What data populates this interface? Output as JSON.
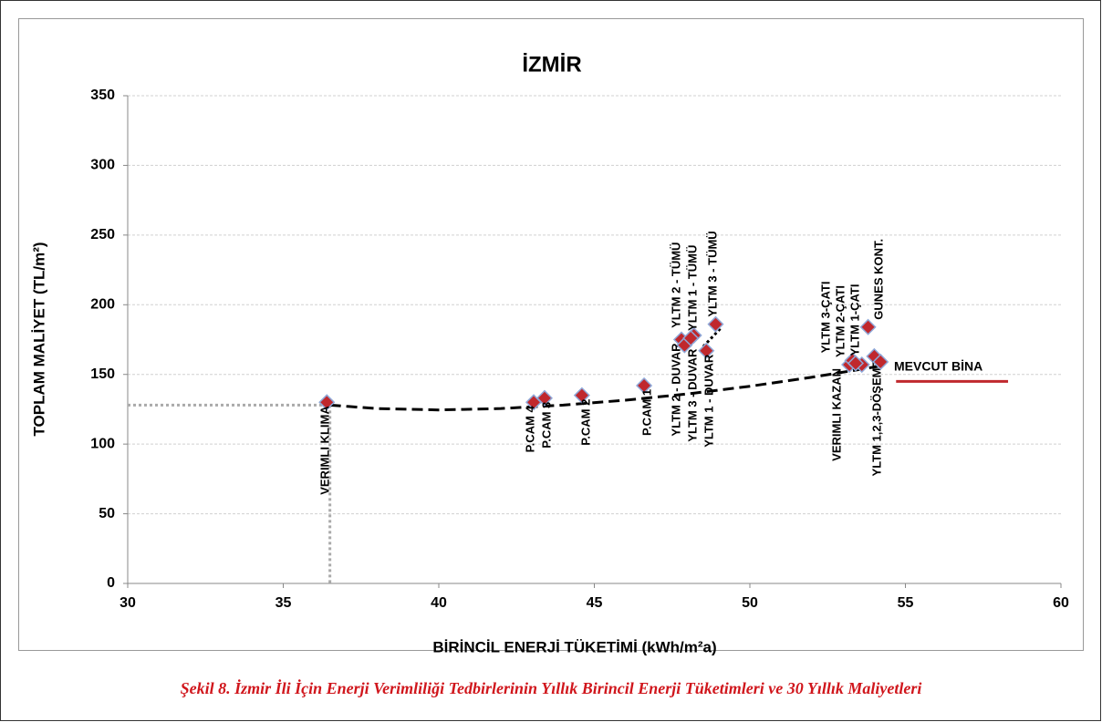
{
  "chart_data": {
    "type": "scatter",
    "title": "İZMİR",
    "x_label": "BİRİNCİL ENERJİ TÜKETİMİ (kWh/m²a)",
    "y_label": "TOPLAM MALİYET (TL/m²)",
    "caption": "Şekil 8. İzmir İli İçin Enerji Verimliliği Tedbirlerinin Yıllık Birincil Enerji Tüketimleri ve 30 Yıllık Maliyetleri",
    "xlim": [
      30,
      60
    ],
    "xticks": [
      30,
      35,
      40,
      45,
      50,
      55,
      60
    ],
    "ylim": [
      0,
      350
    ],
    "yticks": [
      0,
      50,
      100,
      150,
      200,
      250,
      300,
      350
    ],
    "grid": true,
    "color": "#c0282d",
    "edge_color": "#8fa8d8",
    "labels": [
      "VERIMLI KLIMA",
      "P.CAM 4",
      "P.CAM 3",
      "P.CAM 2",
      "P.CAM 1",
      "YLTM 2 - DUVAR",
      "YLTM 3 - DUVAR",
      "YLTM 1 - DUVAR",
      "YLTM 2 - TÜMÜ",
      "YLTM 1 - TÜMÜ",
      "YLTM 3 - TÜMÜ",
      "VERIMLI KAZAN",
      "YLTM 3-ÇATI",
      "YLTM 2-ÇATI",
      "YLTM 1-ÇATI",
      "GUNES KONT.",
      "YLTM 1,2,3-DÖŞEME",
      "MEVCUT BİNA"
    ],
    "x": [
      36.4,
      43.05,
      43.4,
      44.6,
      46.6,
      47.8,
      47.9,
      48.6,
      48.2,
      48.1,
      48.9,
      53.2,
      53.3,
      53.6,
      53.4,
      53.8,
      54.0,
      54.2
    ],
    "y": [
      130,
      130,
      133,
      135,
      142,
      175,
      171,
      167,
      178,
      176,
      186,
      157,
      160,
      157,
      158,
      184,
      163,
      159
    ],
    "trendline": {
      "x": [
        36.5,
        38,
        40,
        42,
        44,
        46,
        48,
        50,
        52,
        54.2
      ],
      "y": [
        128,
        125.5,
        124.5,
        125.5,
        128,
        131.5,
        136,
        141.5,
        148,
        156
      ]
    },
    "trend_extension": {
      "x": [
        48.5,
        49.1
      ],
      "y": [
        170,
        184
      ]
    },
    "reference_line": {
      "x": [
        54.7,
        58.3
      ],
      "y": 145,
      "color": "#c0282d"
    }
  }
}
